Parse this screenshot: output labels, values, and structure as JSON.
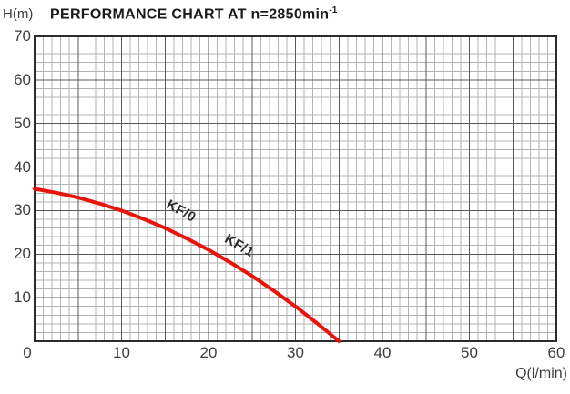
{
  "title": {
    "text": "PERFORMANCE CHART AT n=2850min",
    "superscript": "-1"
  },
  "axes": {
    "y_unit": "H(m)",
    "x_unit": "Q(l/min)",
    "origin_label": "0",
    "y_ticks": [
      70,
      60,
      50,
      40,
      30,
      20,
      10
    ],
    "x_ticks": [
      10,
      20,
      30,
      40,
      50,
      60
    ]
  },
  "colors": {
    "curve": "#e8140a",
    "grid_minor": "#b3b3b3",
    "grid_major": "#585858",
    "border": "#2b2b2b",
    "text": "#3d3d3d"
  },
  "chart_data": {
    "type": "line",
    "title": "PERFORMANCE CHART AT n=2850min-1",
    "xlabel": "Q(l/min)",
    "ylabel": "H(m)",
    "xlim": [
      0,
      60
    ],
    "ylim": [
      0,
      70
    ],
    "grid": true,
    "x_minor_step": 1,
    "x_major_step": 5,
    "y_minor_step": 2,
    "y_major_step": 10,
    "series": [
      {
        "name": "KF/0 / KF/1",
        "color": "#e8140a",
        "points": [
          [
            0,
            35.0
          ],
          [
            2.5,
            34.1
          ],
          [
            5,
            33.0
          ],
          [
            7.5,
            31.6
          ],
          [
            10,
            30.0
          ],
          [
            12.5,
            28.1
          ],
          [
            15,
            26.0
          ],
          [
            17.5,
            23.6
          ],
          [
            20,
            21.0
          ],
          [
            22.5,
            18.1
          ],
          [
            25,
            15.0
          ],
          [
            27.5,
            11.6
          ],
          [
            30,
            8.0
          ],
          [
            32.5,
            4.1
          ],
          [
            35,
            0.0
          ]
        ]
      }
    ],
    "annotations": [
      {
        "text": "KF/0",
        "q": 16.9,
        "h": 29.8,
        "angle_deg": 29
      },
      {
        "text": "KF/1",
        "q": 23.6,
        "h": 22.0,
        "angle_deg": 30
      }
    ]
  }
}
